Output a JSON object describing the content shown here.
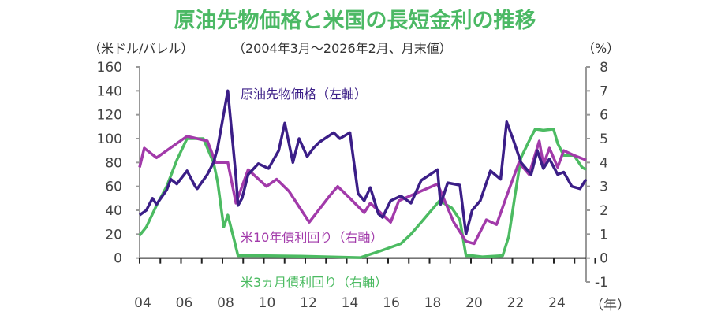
{
  "chart_data": {
    "type": "line",
    "title": "原油先物価格と米国の長短金利の推移",
    "subtitle": "（2004年3月～2026年2月、月末値）",
    "ylabel_left": "（米ドル/バレル）",
    "ylabel_right": "（%）",
    "xlabel": "（年）",
    "ylim_left": [
      -20,
      160
    ],
    "ylim_right": [
      -1,
      8
    ],
    "yticks_left": [
      "160",
      "140",
      "120",
      "100",
      "80",
      "60",
      "40",
      "20",
      "0"
    ],
    "yticks_right": [
      "8",
      "7",
      "6",
      "5",
      "4",
      "3",
      "2",
      "1",
      "0",
      "-1"
    ],
    "xticks": [
      "04",
      "06",
      "08",
      "10",
      "12",
      "14",
      "16",
      "18",
      "20",
      "22",
      "24"
    ],
    "xlim": [
      2004.17,
      2026.1
    ],
    "grid": false,
    "series": [
      {
        "name": "原油先物価格（左軸）",
        "axis": "left",
        "color": "#3b1e87",
        "x": [
          2004.17,
          2004.5,
          2004.8,
          2005.0,
          2005.5,
          2005.7,
          2006.0,
          2006.5,
          2006.9,
          2007.0,
          2007.5,
          2007.8,
          2008.0,
          2008.5,
          2008.9,
          2009.0,
          2009.2,
          2009.5,
          2010.0,
          2010.5,
          2011.0,
          2011.3,
          2011.7,
          2012.0,
          2012.4,
          2012.7,
          2013.0,
          2013.7,
          2014.0,
          2014.5,
          2014.9,
          2015.2,
          2015.5,
          2015.9,
          2016.1,
          2016.5,
          2017.0,
          2017.5,
          2018.0,
          2018.8,
          2018.95,
          2019.3,
          2019.9,
          2020.2,
          2020.5,
          2020.9,
          2021.4,
          2021.9,
          2022.2,
          2022.5,
          2022.9,
          2023.4,
          2023.7,
          2024.0,
          2024.3,
          2024.7,
          2025.0,
          2025.4,
          2025.8,
          2026.1
        ],
        "y": [
          36,
          40,
          50,
          45,
          57,
          66,
          62,
          73,
          60,
          58,
          70,
          80,
          92,
          140,
          68,
          44,
          50,
          70,
          79,
          75,
          90,
          113,
          80,
          100,
          85,
          92,
          97,
          105,
          100,
          105,
          54,
          48,
          59,
          37,
          34,
          48,
          52,
          46,
          65,
          74,
          45,
          63,
          61,
          20,
          40,
          48,
          73,
          66,
          114,
          100,
          80,
          70,
          90,
          75,
          83,
          70,
          72,
          60,
          58,
          66
        ]
      },
      {
        "name": "米10年債利回り（右軸）",
        "axis": "right",
        "color": "#a23aaa",
        "x": [
          2004.17,
          2004.4,
          2005.0,
          2006.5,
          2007.5,
          2007.9,
          2008.5,
          2008.9,
          2009.5,
          2010.4,
          2010.9,
          2011.5,
          2012.5,
          2013.5,
          2013.9,
          2014.5,
          2015.2,
          2015.5,
          2016.5,
          2016.9,
          2018.8,
          2019.6,
          2020.2,
          2020.6,
          2021.2,
          2021.7,
          2022.2,
          2022.8,
          2023.3,
          2023.8,
          2024.0,
          2024.3,
          2024.7,
          2025.0,
          2025.5,
          2026.1
        ],
        "y": [
          3.8,
          4.6,
          4.2,
          5.1,
          4.9,
          4.0,
          4.0,
          2.3,
          3.7,
          3.0,
          3.3,
          2.8,
          1.5,
          2.6,
          3.0,
          2.5,
          1.9,
          2.3,
          1.5,
          2.4,
          3.1,
          1.5,
          0.7,
          0.6,
          1.6,
          1.4,
          2.6,
          4.0,
          3.5,
          4.9,
          3.9,
          4.6,
          3.8,
          4.5,
          4.3,
          4.1
        ]
      },
      {
        "name": "米3ヵ月債利回り（右軸）",
        "axis": "right",
        "color": "#4cbb62",
        "x": [
          2004.17,
          2004.5,
          2005.0,
          2005.5,
          2006.0,
          2006.5,
          2007.3,
          2007.8,
          2008.0,
          2008.3,
          2008.5,
          2008.8,
          2009.0,
          2010.0,
          2012.0,
          2015.0,
          2016.0,
          2017.0,
          2017.5,
          2018.0,
          2018.9,
          2019.5,
          2019.9,
          2020.2,
          2020.5,
          2021.0,
          2022.0,
          2022.3,
          2022.6,
          2022.9,
          2023.3,
          2023.6,
          2024.0,
          2024.5,
          2024.7,
          2025.0,
          2025.5,
          2025.9,
          2026.1
        ],
        "y": [
          0.95,
          1.3,
          2.2,
          3.0,
          4.1,
          5.0,
          5.0,
          4.0,
          3.2,
          1.3,
          1.8,
          0.8,
          0.1,
          0.1,
          0.08,
          0.02,
          0.3,
          0.6,
          1.0,
          1.5,
          2.4,
          2.1,
          1.6,
          0.1,
          0.1,
          0.05,
          0.1,
          0.9,
          2.6,
          4.2,
          4.9,
          5.4,
          5.35,
          5.4,
          4.8,
          4.3,
          4.3,
          3.8,
          3.7
        ]
      }
    ]
  }
}
